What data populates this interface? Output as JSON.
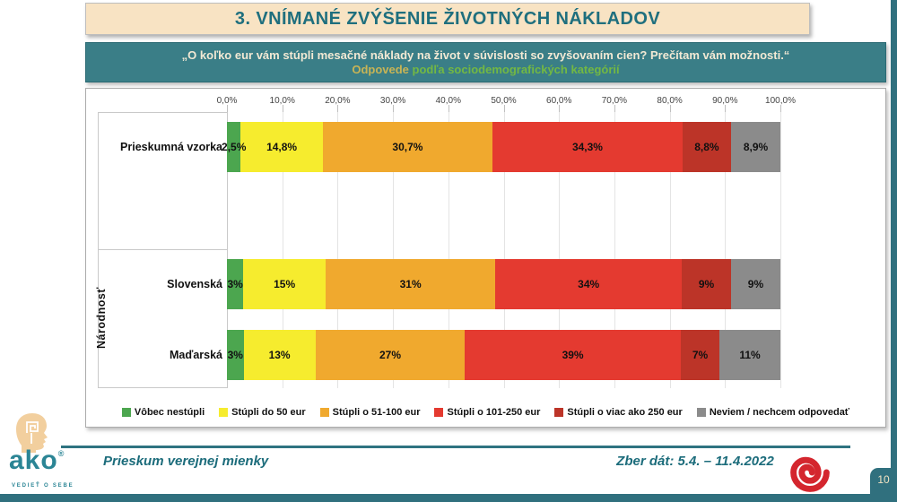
{
  "slide": {
    "title": "3. VNÍMANÉ ZVÝŠENIE ŽIVOTNÝCH NÁKLADOV",
    "question_quote": "„O koľko eur vám stúpli mesačné náklady na život v súvislosti so zvyšovaním cien? Prečítam vám možnosti.“",
    "subtitle_highlight": "Odpovede",
    "subtitle_rest": " podľa sociodemografických kategórií",
    "page_number": "10"
  },
  "footer": {
    "left_text": "Prieskum verejnej mienky",
    "right_text": "Zber dát: 5.4. – 11.4.2022",
    "logo_text": "ako",
    "logo_registered": "®",
    "logo_tagline": "VEDIEŤ O SEBE"
  },
  "colors": {
    "brand_teal": "#2E7380",
    "header_cream": "#F8E3C3",
    "subtitle_band": "#3A7E87",
    "subtitle_highlight": "#C8B455",
    "subtitle_rest": "#73B843",
    "logo_red": "#D4262E",
    "logo_skin": "#F2CF9E"
  },
  "chart_data": {
    "type": "bar",
    "orientation": "horizontal-stacked",
    "title": "3. VNÍMANÉ ZVÝŠENIE ŽIVOTNÝCH NÁKLADOV",
    "subtitle": "Odpovede podľa sociodemografických kategórií",
    "grid": true,
    "legend_position": "bottom",
    "xlim": [
      0,
      100
    ],
    "x_ticks": [
      "0,0%",
      "10,0%",
      "20,0%",
      "30,0%",
      "40,0%",
      "50,0%",
      "60,0%",
      "70,0%",
      "80,0%",
      "90,0%",
      "100,0%"
    ],
    "group_label": "Národnosť",
    "group_categories": [
      "Slovenská",
      "Maďarská"
    ],
    "categories": [
      "Prieskumná vzorka",
      "Slovenská",
      "Maďarská"
    ],
    "series": [
      {
        "name": "Vôbec nestúpli",
        "color": "#4CA64F",
        "values": [
          2.5,
          3,
          3
        ],
        "labels": [
          "2,5%",
          "3%",
          "3%"
        ]
      },
      {
        "name": "Stúpli do 50 eur",
        "color": "#F6EC2E",
        "values": [
          14.8,
          15,
          13
        ],
        "labels": [
          "14,8%",
          "15%",
          "13%"
        ]
      },
      {
        "name": "Stúpli o 51-100 eur",
        "color": "#F0A92E",
        "values": [
          30.7,
          31,
          27
        ],
        "labels": [
          "30,7%",
          "31%",
          "27%"
        ]
      },
      {
        "name": "Stúpli o 101-250 eur",
        "color": "#E43A30",
        "values": [
          34.3,
          34,
          39
        ],
        "labels": [
          "34,3%",
          "34%",
          "39%"
        ]
      },
      {
        "name": "Stúpli o viac ako 250 eur",
        "color": "#BC3428",
        "values": [
          8.8,
          9,
          7
        ],
        "labels": [
          "8,8%",
          "9%",
          "7%"
        ]
      },
      {
        "name": "Neviem / nechcem odpovedať",
        "color": "#8B8B8B",
        "values": [
          8.9,
          9,
          11
        ],
        "labels": [
          "8,9%",
          "9%",
          "11%"
        ]
      }
    ]
  }
}
